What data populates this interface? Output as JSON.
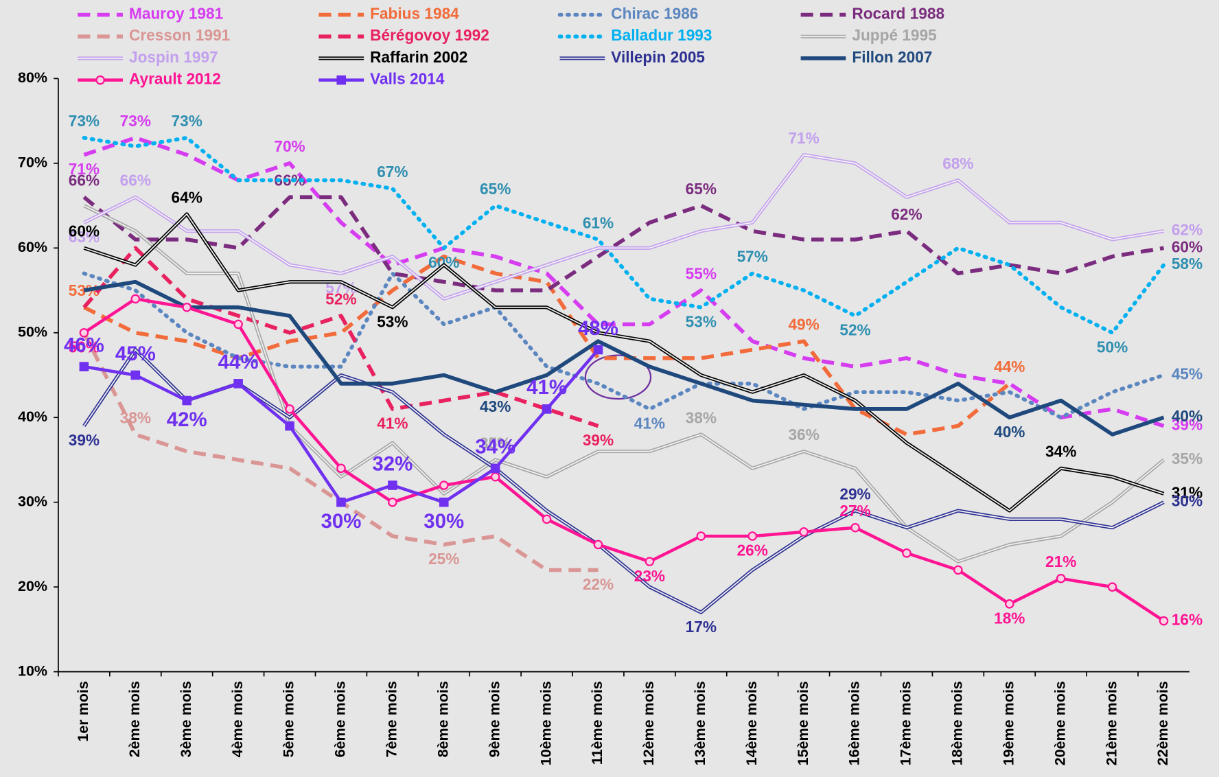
{
  "chart_data": {
    "type": "line",
    "categories": [
      "1er mois",
      "2ème mois",
      "3ème mois",
      "4ème mois",
      "5ème mois",
      "6ème mois",
      "7ème mois",
      "8ème mois",
      "9ème mois",
      "10ème mois",
      "11ème mois",
      "12ème mois",
      "13ème mois",
      "14ème mois",
      "15ème mois",
      "16ème mois",
      "17ème mois",
      "18ème mois",
      "19ème mois",
      "20ème mois",
      "21ème mois",
      "22ème mois"
    ],
    "ylim": [
      10,
      80
    ],
    "yticks": [
      {
        "value": 10,
        "label": "10%"
      },
      {
        "value": 20,
        "label": "20%"
      },
      {
        "value": 30,
        "label": "30%"
      },
      {
        "value": 40,
        "label": "40%"
      },
      {
        "value": 50,
        "label": "50%"
      },
      {
        "value": 60,
        "label": "60%"
      },
      {
        "value": 70,
        "label": "70%"
      },
      {
        "value": 80,
        "label": "80%"
      }
    ],
    "series": [
      {
        "name": "Mauroy 1981",
        "color": "#d63cf0",
        "style": "dashed",
        "values": [
          71,
          73,
          71,
          68,
          70,
          63,
          58,
          60,
          59,
          57,
          51,
          51,
          55,
          49,
          47,
          46,
          47,
          45,
          44,
          40,
          41,
          39
        ],
        "value_labels": [
          "71%",
          "73%",
          null,
          null,
          "70%",
          null,
          null,
          null,
          null,
          null,
          null,
          null,
          "55%",
          null,
          null,
          null,
          null,
          null,
          null,
          null,
          null,
          "39%"
        ]
      },
      {
        "name": "Fabius 1984",
        "color": "#f26b3a",
        "style": "dashed",
        "values": [
          53,
          50,
          49,
          47,
          49,
          50,
          55,
          59,
          57,
          56,
          47,
          47,
          47,
          48,
          49,
          41,
          38,
          39,
          44,
          null,
          null,
          null
        ],
        "value_labels": [
          "53%",
          null,
          null,
          null,
          null,
          null,
          null,
          null,
          null,
          null,
          null,
          null,
          null,
          null,
          "49%",
          null,
          null,
          null,
          "44%",
          null,
          null,
          null
        ]
      },
      {
        "name": "Chirac 1986",
        "color": "#5b86c0",
        "style": "dotted",
        "values": [
          57,
          55,
          50,
          47,
          46,
          46,
          57,
          51,
          53,
          46,
          44,
          41,
          44,
          44,
          41,
          43,
          43,
          42,
          43,
          40,
          43,
          45
        ],
        "value_labels": [
          null,
          null,
          null,
          null,
          null,
          null,
          null,
          null,
          null,
          null,
          null,
          "41%",
          null,
          null,
          null,
          null,
          null,
          null,
          null,
          null,
          null,
          "45%"
        ]
      },
      {
        "name": "Rocard 1988",
        "color": "#7b2c7f",
        "style": "dashed",
        "values": [
          66,
          61,
          61,
          60,
          66,
          66,
          57,
          56,
          55,
          55,
          59,
          63,
          65,
          62,
          61,
          61,
          62,
          57,
          58,
          57,
          59,
          60
        ],
        "value_labels": [
          "66%",
          null,
          null,
          null,
          "66%",
          null,
          null,
          null,
          null,
          null,
          null,
          null,
          "65%",
          null,
          null,
          null,
          "62%",
          null,
          null,
          null,
          null,
          "60%"
        ]
      },
      {
        "name": "Cresson 1991",
        "color": "#d99694",
        "style": "dashed",
        "values": [
          50,
          38,
          36,
          35,
          34,
          30,
          26,
          25,
          26,
          22,
          22,
          null,
          null,
          null,
          null,
          null,
          null,
          null,
          null,
          null,
          null,
          null
        ],
        "value_labels": [
          null,
          "38%",
          null,
          null,
          null,
          null,
          null,
          "25%",
          null,
          null,
          "22%",
          null,
          null,
          null,
          null,
          null,
          null,
          null,
          null,
          null,
          null,
          null
        ]
      },
      {
        "name": "Bérégovoy 1992",
        "color": "#e8215f",
        "style": "dashed",
        "values": [
          53,
          60,
          54,
          52,
          50,
          52,
          41,
          42,
          43,
          41,
          39,
          null,
          null,
          null,
          null,
          null,
          null,
          null,
          null,
          null,
          null,
          null
        ],
        "value_labels": [
          null,
          null,
          null,
          null,
          null,
          "52%",
          "41%",
          null,
          null,
          null,
          "39%",
          null,
          null,
          null,
          null,
          null,
          null,
          null,
          null,
          null,
          null,
          null
        ]
      },
      {
        "name": "Balladur 1993",
        "color": "#00b0f0",
        "style": "dotted",
        "values": [
          73,
          72,
          73,
          68,
          68,
          68,
          67,
          60,
          65,
          63,
          61,
          54,
          53,
          57,
          55,
          52,
          56,
          60,
          58,
          53,
          50,
          58
        ],
        "value_labels": [
          "73%",
          null,
          "73%",
          null,
          null,
          null,
          "67%",
          "60%",
          "65%",
          null,
          "61%",
          null,
          "53%",
          "57%",
          null,
          "52%",
          null,
          null,
          null,
          null,
          "50%",
          "58%"
        ]
      },
      {
        "name": "Juppé 1995",
        "color": "#a6a6a6",
        "style": "double",
        "values": [
          65,
          62,
          57,
          57,
          39,
          33,
          37,
          31,
          35,
          33,
          36,
          36,
          38,
          34,
          36,
          34,
          27,
          23,
          25,
          26,
          30,
          35
        ],
        "value_labels": [
          null,
          null,
          null,
          null,
          null,
          null,
          null,
          null,
          "35%",
          null,
          null,
          null,
          "38%",
          null,
          "36%",
          null,
          null,
          null,
          null,
          null,
          null,
          "35%"
        ]
      },
      {
        "name": "Jospin 1997",
        "color": "#c3a0ee",
        "style": "double",
        "values": [
          63,
          66,
          62,
          62,
          58,
          57,
          59,
          54,
          56,
          58,
          60,
          60,
          62,
          63,
          71,
          70,
          66,
          68,
          63,
          63,
          61,
          62
        ],
        "value_labels": [
          "63%",
          "66%",
          null,
          null,
          null,
          "57%",
          null,
          null,
          null,
          null,
          null,
          null,
          null,
          null,
          "71%",
          null,
          null,
          "68%",
          null,
          null,
          null,
          "62%"
        ]
      },
      {
        "name": "Raffarin 2002",
        "color": "#000000",
        "style": "double",
        "values": [
          60,
          58,
          64,
          55,
          56,
          56,
          53,
          58,
          53,
          53,
          50,
          49,
          45,
          43,
          45,
          42,
          37,
          33,
          29,
          34,
          33,
          31
        ],
        "value_labels": [
          "60%",
          null,
          "64%",
          null,
          null,
          null,
          "53%",
          null,
          null,
          null,
          null,
          null,
          null,
          null,
          null,
          null,
          null,
          null,
          null,
          "34%",
          null,
          "31%"
        ]
      },
      {
        "name": "Villepin 2005",
        "color": "#2e3192",
        "style": "double",
        "values": [
          39,
          48,
          42,
          44,
          40,
          45,
          43,
          38,
          34,
          29,
          25,
          20,
          17,
          22,
          26,
          29,
          27,
          29,
          28,
          28,
          27,
          30
        ],
        "value_labels": [
          "39%",
          null,
          null,
          null,
          null,
          null,
          null,
          null,
          null,
          null,
          null,
          null,
          "17%",
          null,
          null,
          "29%",
          null,
          null,
          null,
          null,
          null,
          "30%"
        ]
      },
      {
        "name": "Fillon 2007",
        "color": "#1f497d",
        "style": "solid",
        "values": [
          55,
          56,
          53,
          53,
          52,
          44,
          44,
          45,
          43,
          45,
          49,
          46,
          44,
          42,
          41.5,
          41,
          41,
          44,
          40,
          42,
          38,
          40
        ],
        "value_labels": [
          null,
          null,
          null,
          null,
          null,
          null,
          null,
          null,
          "43%",
          null,
          null,
          null,
          null,
          null,
          null,
          null,
          null,
          null,
          "40%",
          null,
          null,
          "40%"
        ]
      },
      {
        "name": "Ayrault 2012",
        "color": "#ff1493",
        "style": "solid",
        "marker": "circle",
        "values": [
          50,
          54,
          53,
          51,
          41,
          34,
          30,
          32,
          33,
          28,
          25,
          23,
          26,
          26,
          26.5,
          27,
          24,
          22,
          18,
          21,
          20,
          16
        ],
        "value_labels": [
          "50%",
          null,
          null,
          null,
          null,
          null,
          null,
          null,
          null,
          null,
          null,
          "23%",
          null,
          "26%",
          null,
          "27%",
          null,
          null,
          "18%",
          "21%",
          null,
          "16%"
        ]
      },
      {
        "name": "Valls 2014",
        "color": "#7030f0",
        "style": "solid",
        "marker": "square",
        "values": [
          46,
          45,
          42,
          44,
          39,
          30,
          32,
          30,
          34,
          41,
          48,
          null,
          null,
          null,
          null,
          null,
          null,
          null,
          null,
          null,
          null,
          null
        ],
        "value_labels": [
          "46%",
          "45%",
          "42%",
          "44%",
          null,
          "30%",
          "32%",
          "30%",
          "34%",
          "41%",
          "48%",
          null,
          null,
          null,
          null,
          null,
          null,
          null,
          null,
          null,
          null,
          null
        ]
      }
    ]
  }
}
